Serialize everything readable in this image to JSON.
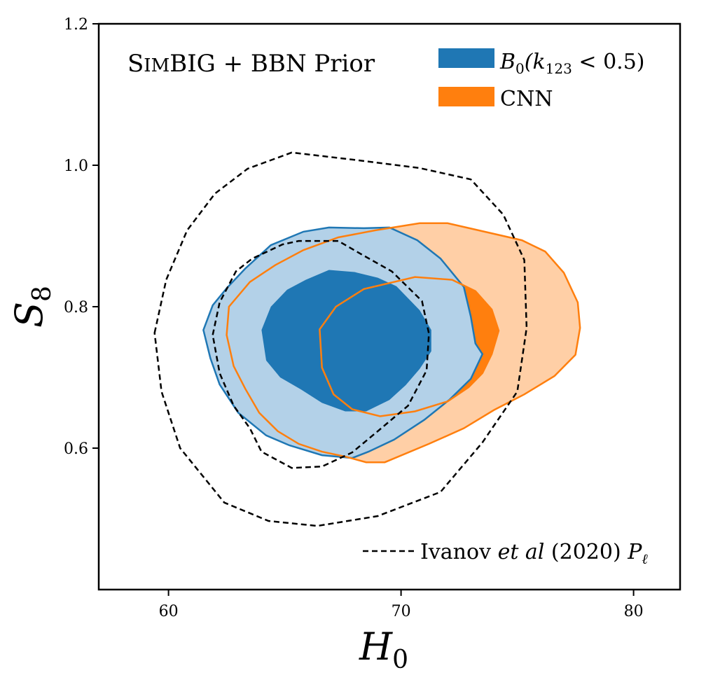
{
  "chart_data": {
    "type": "contour",
    "title": "SimBIG + BBN Prior",
    "title_parts": {
      "lead_cap": "S",
      "lead_small": "IM",
      "rest": "BIG + BBN Prior"
    },
    "xlabel": "H",
    "xlabel_sub": "0",
    "ylabel": "S",
    "ylabel_sub": "8",
    "xlim": [
      57,
      82
    ],
    "ylim": [
      0.4,
      1.2
    ],
    "xticks": [
      60,
      70,
      80
    ],
    "xtick_labels": [
      "60",
      "70",
      "80"
    ],
    "yticks": [
      0.6,
      0.8,
      1.0,
      1.2
    ],
    "ytick_labels": [
      "0.6",
      "0.8",
      "1.0",
      "1.2"
    ],
    "grid": false,
    "legend_placement": "top-right",
    "series": [
      {
        "name": "B0(k123 < 0.5)",
        "legend_parts": {
          "main": "B",
          "sub": "0",
          "paren_open": "(k",
          "paren_sub": "123",
          "rest": " < 0.5)"
        },
        "kind": "filled-contours",
        "color": "#1f77b4",
        "outer_fill": "#b3d1e8",
        "outer": [
          [
            61.5,
            0.767
          ],
          [
            61.9,
            0.802
          ],
          [
            62.5,
            0.826
          ],
          [
            63.3,
            0.854
          ],
          [
            64.4,
            0.887
          ],
          [
            65.8,
            0.906
          ],
          [
            66.9,
            0.912
          ],
          [
            68.4,
            0.911
          ],
          [
            69.5,
            0.912
          ],
          [
            70.7,
            0.894
          ],
          [
            71.7,
            0.868
          ],
          [
            72.7,
            0.828
          ],
          [
            73.0,
            0.786
          ],
          [
            73.2,
            0.748
          ],
          [
            73.5,
            0.733
          ],
          [
            73.0,
            0.698
          ],
          [
            72.1,
            0.669
          ],
          [
            71.0,
            0.64
          ],
          [
            69.7,
            0.612
          ],
          [
            68.6,
            0.595
          ],
          [
            67.9,
            0.586
          ],
          [
            66.6,
            0.59
          ],
          [
            65.2,
            0.604
          ],
          [
            64.2,
            0.618
          ],
          [
            63.0,
            0.65
          ],
          [
            62.2,
            0.69
          ],
          [
            61.8,
            0.727
          ],
          [
            61.5,
            0.767
          ]
        ],
        "inner": [
          [
            64.0,
            0.767
          ],
          [
            64.4,
            0.8
          ],
          [
            65.1,
            0.824
          ],
          [
            65.9,
            0.838
          ],
          [
            66.9,
            0.852
          ],
          [
            68.0,
            0.849
          ],
          [
            69.0,
            0.841
          ],
          [
            69.8,
            0.829
          ],
          [
            70.3,
            0.812
          ],
          [
            70.8,
            0.795
          ],
          [
            71.3,
            0.767
          ],
          [
            71.3,
            0.737
          ],
          [
            70.8,
            0.712
          ],
          [
            70.2,
            0.689
          ],
          [
            69.5,
            0.668
          ],
          [
            68.5,
            0.652
          ],
          [
            67.6,
            0.652
          ],
          [
            66.6,
            0.664
          ],
          [
            65.7,
            0.683
          ],
          [
            64.8,
            0.7
          ],
          [
            64.2,
            0.724
          ],
          [
            64.0,
            0.767
          ]
        ]
      },
      {
        "name": "CNN",
        "kind": "filled-contours",
        "color": "#ff7f0e",
        "outer_fill": "#ffcfa6",
        "outer": [
          [
            63.5,
            0.835
          ],
          [
            64.6,
            0.859
          ],
          [
            65.8,
            0.88
          ],
          [
            67.3,
            0.898
          ],
          [
            68.9,
            0.908
          ],
          [
            70.8,
            0.918
          ],
          [
            72.0,
            0.918
          ],
          [
            73.2,
            0.909
          ],
          [
            75.2,
            0.894
          ],
          [
            76.2,
            0.878
          ],
          [
            77.0,
            0.848
          ],
          [
            77.6,
            0.806
          ],
          [
            77.7,
            0.77
          ],
          [
            77.5,
            0.732
          ],
          [
            76.6,
            0.702
          ],
          [
            75.3,
            0.676
          ],
          [
            74.0,
            0.654
          ],
          [
            72.7,
            0.628
          ],
          [
            71.2,
            0.606
          ],
          [
            69.3,
            0.58
          ],
          [
            68.5,
            0.58
          ],
          [
            67.6,
            0.588
          ],
          [
            66.6,
            0.595
          ],
          [
            65.6,
            0.606
          ],
          [
            64.7,
            0.624
          ],
          [
            63.9,
            0.65
          ],
          [
            63.3,
            0.684
          ],
          [
            62.8,
            0.716
          ],
          [
            62.5,
            0.76
          ],
          [
            62.6,
            0.8
          ],
          [
            63.5,
            0.835
          ]
        ],
        "inner": [
          [
            66.5,
            0.768
          ],
          [
            67.2,
            0.8
          ],
          [
            68.4,
            0.825
          ],
          [
            70.6,
            0.842
          ],
          [
            72.2,
            0.838
          ],
          [
            73.2,
            0.822
          ],
          [
            73.9,
            0.796
          ],
          [
            74.2,
            0.766
          ],
          [
            73.9,
            0.733
          ],
          [
            73.5,
            0.706
          ],
          [
            72.9,
            0.686
          ],
          [
            72.0,
            0.666
          ],
          [
            70.6,
            0.652
          ],
          [
            69.1,
            0.645
          ],
          [
            67.9,
            0.655
          ],
          [
            67.1,
            0.676
          ],
          [
            66.6,
            0.714
          ],
          [
            66.5,
            0.768
          ]
        ]
      },
      {
        "name": "Ivanov et al (2020) P_l",
        "legend_parts": {
          "lead": "Ivanov ",
          "italic": "et al",
          "rest": " (2020) ",
          "sym": "P",
          "sym_sub": "ℓ"
        },
        "kind": "dashed-contours",
        "color": "#000000",
        "outer": [
          [
            59.4,
            0.763
          ],
          [
            59.9,
            0.838
          ],
          [
            60.8,
            0.908
          ],
          [
            62.0,
            0.96
          ],
          [
            63.4,
            0.995
          ],
          [
            65.3,
            1.018
          ],
          [
            67.9,
            1.008
          ],
          [
            70.8,
            0.996
          ],
          [
            73.0,
            0.98
          ],
          [
            74.4,
            0.93
          ],
          [
            75.3,
            0.866
          ],
          [
            75.4,
            0.77
          ],
          [
            75.0,
            0.68
          ],
          [
            73.5,
            0.608
          ],
          [
            71.7,
            0.538
          ],
          [
            69.0,
            0.504
          ],
          [
            66.4,
            0.49
          ],
          [
            64.3,
            0.497
          ],
          [
            62.4,
            0.523
          ],
          [
            60.5,
            0.6
          ],
          [
            59.7,
            0.68
          ],
          [
            59.4,
            0.763
          ]
        ],
        "inner": [
          [
            61.9,
            0.76
          ],
          [
            62.2,
            0.806
          ],
          [
            62.9,
            0.85
          ],
          [
            63.6,
            0.868
          ],
          [
            64.9,
            0.888
          ],
          [
            65.6,
            0.893
          ],
          [
            67.3,
            0.893
          ],
          [
            68.3,
            0.874
          ],
          [
            69.6,
            0.85
          ],
          [
            70.9,
            0.808
          ],
          [
            71.2,
            0.762
          ],
          [
            71.1,
            0.71
          ],
          [
            70.3,
            0.66
          ],
          [
            69.0,
            0.624
          ],
          [
            67.9,
            0.594
          ],
          [
            66.6,
            0.574
          ],
          [
            65.3,
            0.572
          ],
          [
            64.0,
            0.595
          ],
          [
            63.5,
            0.628
          ],
          [
            62.8,
            0.66
          ],
          [
            62.2,
            0.706
          ],
          [
            61.9,
            0.76
          ]
        ]
      }
    ]
  }
}
